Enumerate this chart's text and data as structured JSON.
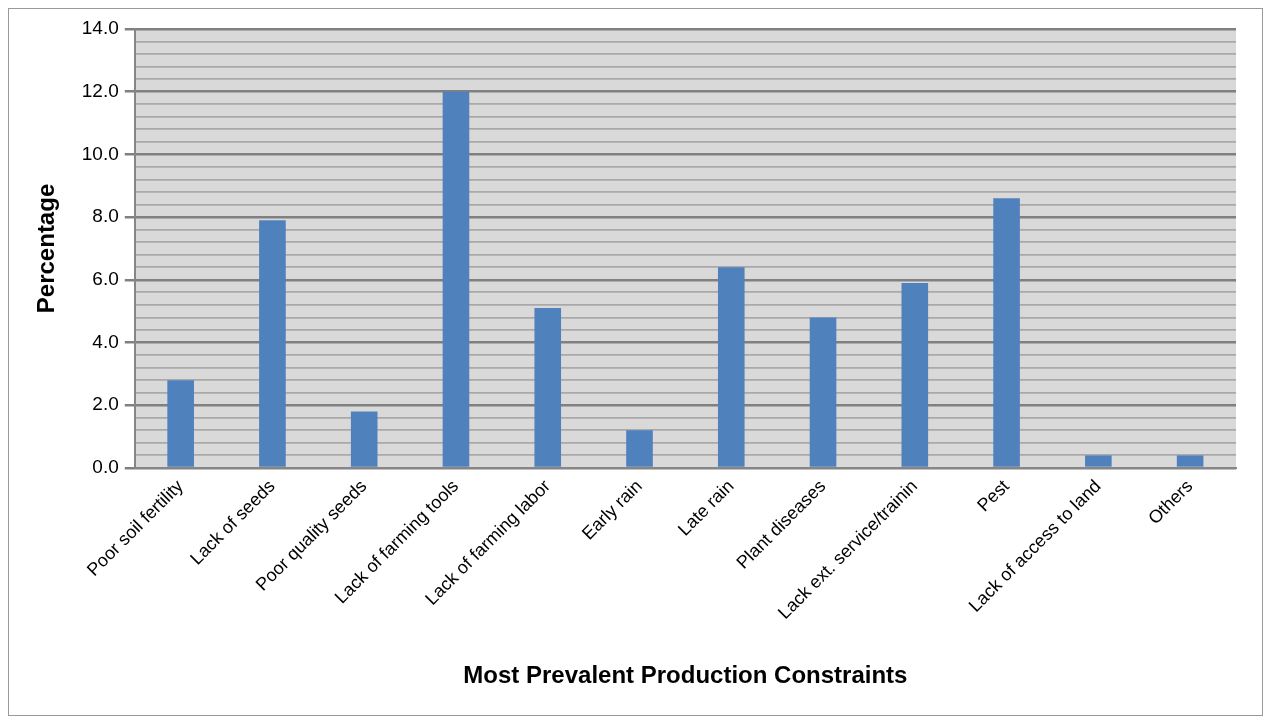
{
  "chart_data": {
    "type": "bar",
    "xlabel": "Most Prevalent Production Constraints",
    "ylabel": "Percentage",
    "categories": [
      "Poor soil fertility",
      "Lack of seeds",
      "Poor quality seeds",
      "Lack of farming tools",
      "Lack of farming labor",
      "Early rain",
      "Late rain",
      "Plant diseases",
      "Lack ext. service/trainin",
      "Pest",
      "Lack of access to land",
      "Others"
    ],
    "values": [
      2.8,
      7.9,
      1.8,
      12.0,
      5.1,
      1.2,
      6.4,
      4.8,
      5.9,
      8.6,
      0.4,
      0.4
    ],
    "color": "#4f81bd",
    "ylim": [
      0,
      14
    ],
    "yticks": [
      {
        "value": 0,
        "label": "0.0"
      },
      {
        "value": 0.4,
        "label": null
      },
      {
        "value": 0.8,
        "label": null
      },
      {
        "value": 1.2,
        "label": null
      },
      {
        "value": 1.6,
        "label": null
      },
      {
        "value": 2,
        "label": "2.0"
      },
      {
        "value": 2.4,
        "label": null
      },
      {
        "value": 2.8,
        "label": null
      },
      {
        "value": 3.2,
        "label": null
      },
      {
        "value": 3.6,
        "label": null
      },
      {
        "value": 4,
        "label": "4.0"
      },
      {
        "value": 4.4,
        "label": null
      },
      {
        "value": 4.8,
        "label": null
      },
      {
        "value": 5.2,
        "label": null
      },
      {
        "value": 5.6,
        "label": null
      },
      {
        "value": 6,
        "label": "6.0"
      },
      {
        "value": 6.4,
        "label": null
      },
      {
        "value": 6.8,
        "label": null
      },
      {
        "value": 7.2,
        "label": null
      },
      {
        "value": 7.6,
        "label": null
      },
      {
        "value": 8,
        "label": "8.0"
      },
      {
        "value": 8.4,
        "label": null
      },
      {
        "value": 8.8,
        "label": null
      },
      {
        "value": 9.2,
        "label": null
      },
      {
        "value": 9.6,
        "label": null
      },
      {
        "value": 10,
        "label": "10.0"
      },
      {
        "value": 10.4,
        "label": null
      },
      {
        "value": 10.8,
        "label": null
      },
      {
        "value": 11.2,
        "label": null
      },
      {
        "value": 11.6,
        "label": null
      },
      {
        "value": 12,
        "label": "12.0"
      },
      {
        "value": 12.4,
        "label": null
      },
      {
        "value": 12.8,
        "label": null
      },
      {
        "value": 13.2,
        "label": null
      },
      {
        "value": 13.6,
        "label": null
      },
      {
        "value": 14,
        "label": "14.0"
      }
    ],
    "grid": "y",
    "legend": false
  }
}
